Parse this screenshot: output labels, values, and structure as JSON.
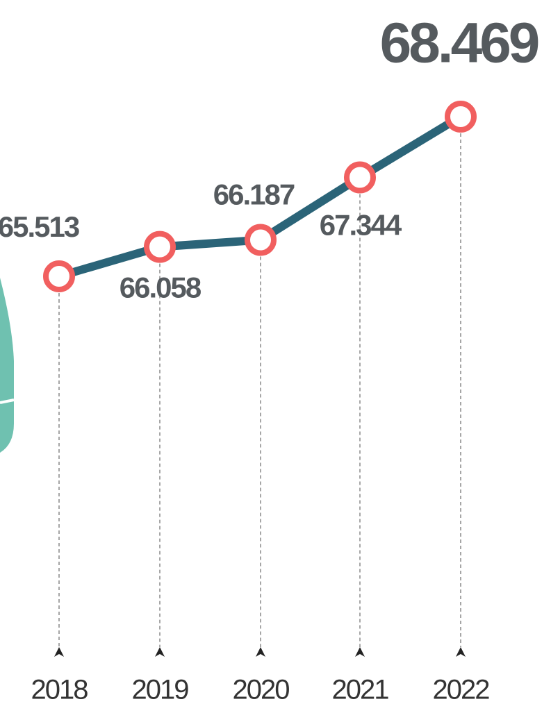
{
  "chart_data": {
    "type": "line",
    "categories": [
      "2018",
      "2019",
      "2020",
      "2021",
      "2022"
    ],
    "values": [
      65.513,
      66.058,
      66.187,
      67.344,
      68.469
    ],
    "color": "#2b6478",
    "marker_color": "#f15f5f",
    "highlight_color": "#f15f5f"
  }
}
